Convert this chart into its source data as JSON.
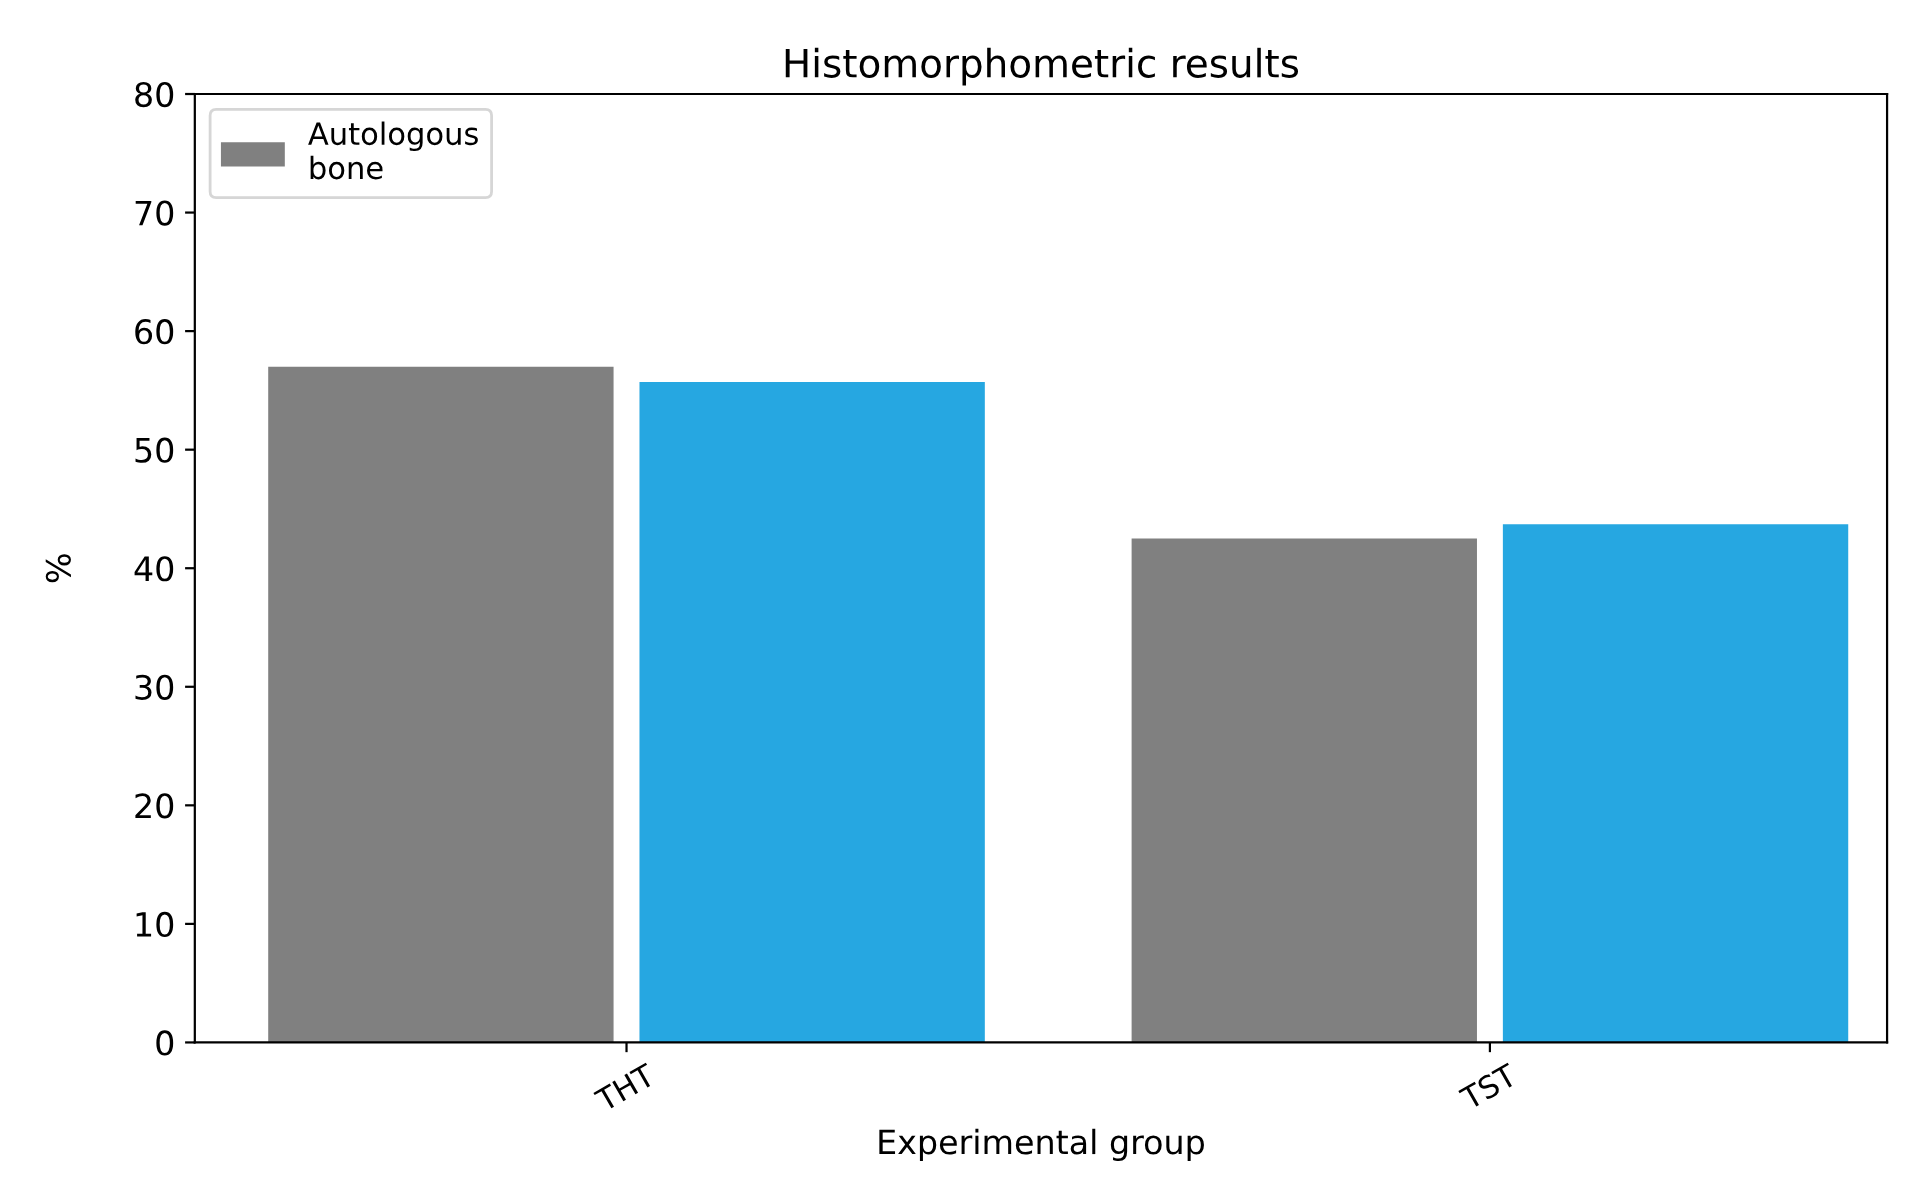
{
  "chart_data": {
    "type": "bar",
    "title": "Histomorphometric results",
    "xlabel": "Experimental group",
    "ylabel": "%",
    "categories": [
      "THT",
      "TST"
    ],
    "series": [
      {
        "name": "Autologous\nbone",
        "color": "#808080",
        "values": [
          57.0,
          42.5
        ]
      },
      {
        "color": "#26a7e1",
        "values": [
          55.7,
          43.7
        ]
      }
    ],
    "ylim": [
      0,
      80
    ],
    "yticks": [
      0,
      10,
      20,
      30,
      40,
      50,
      60,
      70,
      80
    ],
    "grid": false,
    "legend": "top left"
  }
}
